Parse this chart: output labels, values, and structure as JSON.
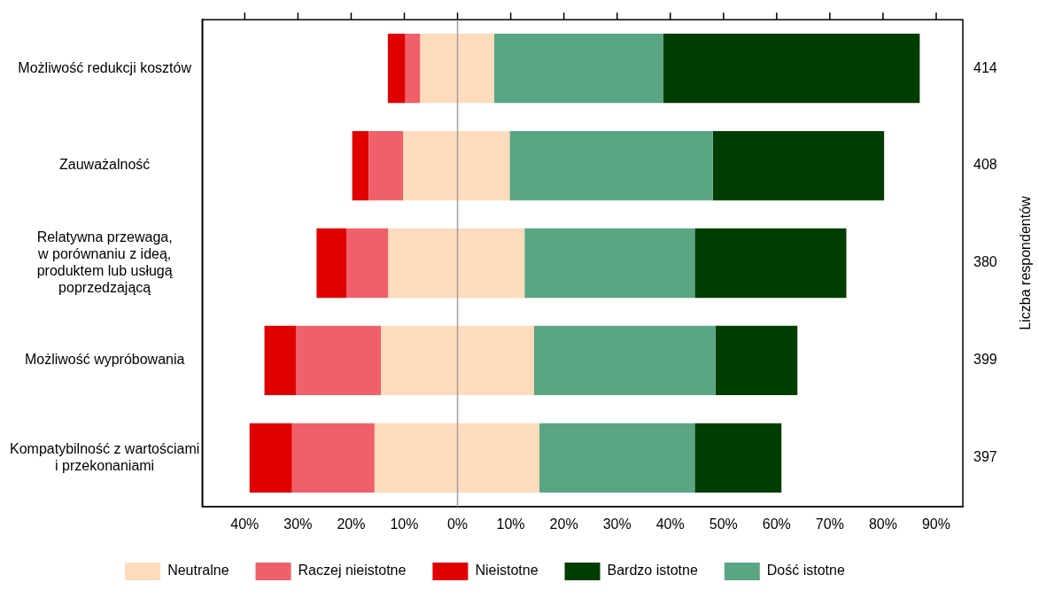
{
  "chart_data": {
    "type": "bar",
    "orientation": "horizontal",
    "stacked": true,
    "categories": [
      "Możliwość redukcji kosztów",
      "Zauważalność",
      "Relatywna przewaga,\nw porównaniu z ideą,\nproduktem lub usługą\npoprzedzającą",
      "Możliwość wypróbowania",
      "Kompatybilność z wartościami\ni przekonaniami"
    ],
    "series": [
      {
        "name": "Neutralne",
        "color": "#fddbbd",
        "values": [
          -7.0,
          -10.2,
          -13.0,
          -14.4,
          -15.6
        ]
      },
      {
        "color": "#fddbbd",
        "values": [
          6.9,
          9.8,
          12.6,
          14.4,
          15.4
        ]
      },
      {
        "name": "Raczej nieistotne",
        "color": "#f0606a",
        "values": [
          -2.8,
          -6.5,
          -7.9,
          -16.0,
          -15.5
        ]
      },
      {
        "name": "Nieistotne",
        "color": "#e00000",
        "values": [
          -3.3,
          -3.1,
          -5.6,
          -5.9,
          -8.0
        ]
      },
      {
        "name": "Dość istotne",
        "color": "#5aa583",
        "values": [
          31.8,
          38.2,
          32.0,
          34.1,
          29.2
        ]
      },
      {
        "name": "Bardzo istotne",
        "color": "#003d00",
        "values": [
          48.2,
          32.2,
          28.5,
          15.4,
          16.3
        ]
      }
    ],
    "xlim": [
      -48,
      95
    ],
    "xticks": [
      {
        "value": -40,
        "label": "40%"
      },
      {
        "value": -30,
        "label": "30%"
      },
      {
        "value": -20,
        "label": "20%"
      },
      {
        "value": -10,
        "label": "10%"
      },
      {
        "value": 0,
        "label": "0%"
      },
      {
        "value": 10,
        "label": "10%"
      },
      {
        "value": 20,
        "label": "20%"
      },
      {
        "value": 30,
        "label": "30%"
      },
      {
        "value": 40,
        "label": "40%"
      },
      {
        "value": 50,
        "label": "50%"
      },
      {
        "value": 60,
        "label": "60%"
      },
      {
        "value": 70,
        "label": "70%"
      },
      {
        "value": 80,
        "label": "80%"
      },
      {
        "value": 90,
        "label": "90%"
      }
    ],
    "y2label": "Liczba respondentów",
    "y2_categories": [
      "414",
      "408",
      "380",
      "399",
      "397"
    ],
    "ref_lines": [
      {
        "axis": "x",
        "value": 0,
        "color": "#a0a0a0"
      }
    ],
    "grid": false,
    "legend": "bottom"
  }
}
